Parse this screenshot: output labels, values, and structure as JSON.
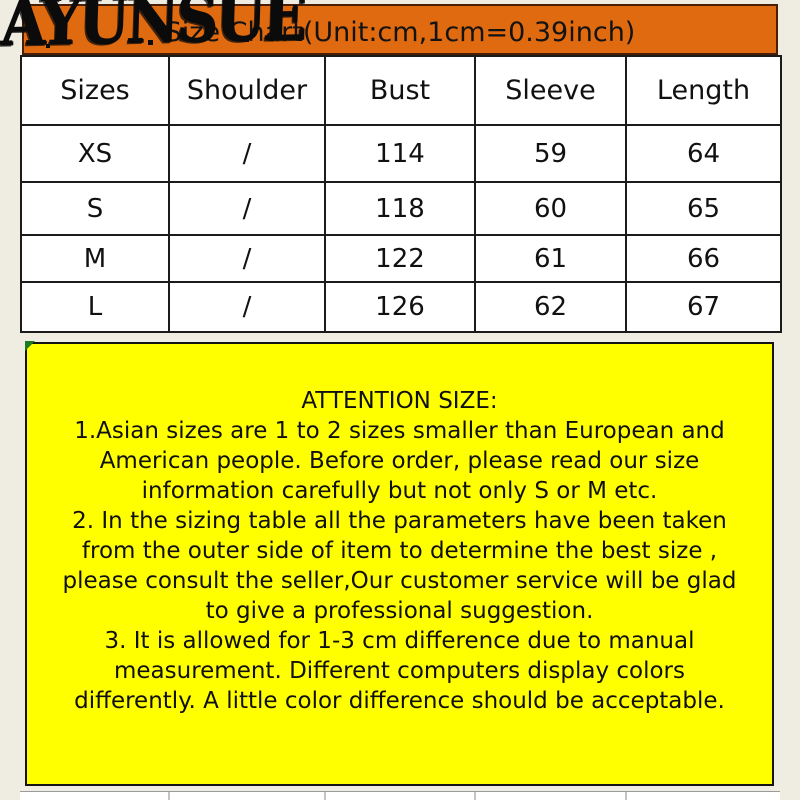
{
  "watermark": {
    "text": "AYUNSUE"
  },
  "header": {
    "title": "Size Chart(Unit:cm,1cm=0.39inch)"
  },
  "table": {
    "columns": [
      "Sizes",
      "Shoulder",
      "Bust",
      "Sleeve",
      "Length"
    ],
    "rows": [
      [
        "XS",
        "/",
        "114",
        "59",
        "64"
      ],
      [
        "S",
        "/",
        "118",
        "60",
        "65"
      ],
      [
        "M",
        "/",
        "122",
        "61",
        "66"
      ],
      [
        "L",
        "/",
        "126",
        "62",
        "67"
      ]
    ]
  },
  "attention": {
    "title": "ATTENTION SIZE:",
    "lines": [
      "1.Asian sizes are 1 to 2 sizes smaller than European and",
      "American people. Before order, please read our size",
      "information carefully but not only S or M etc.",
      "2. In the sizing table all the parameters have been taken",
      "from the outer side of item to determine the best size ,",
      "please consult the seller,Our customer service will be glad",
      "to give a professional suggestion.",
      "3. It is allowed for 1-3 cm difference due to manual",
      "measurement. Different computers display colors",
      "differently. A little color difference should be acceptable."
    ]
  },
  "colors": {
    "header_bg": "#e06a10",
    "header_border": "#4a1e04",
    "attention_bg": "#ffff00",
    "page_bg": "#efede2",
    "table_border": "#1b1b1b",
    "corner_marker": "#1e7a1e"
  }
}
